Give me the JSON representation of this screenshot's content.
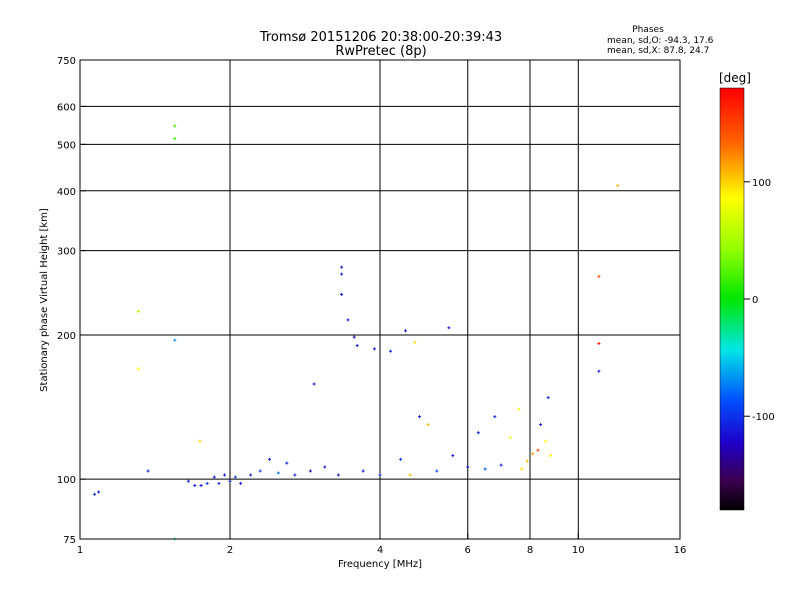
{
  "chart_data": {
    "type": "scatter",
    "title": "Tromsø 20151206 20:38:00-20:39:43",
    "subtitle": "RwPretec (8p)",
    "xlabel": "Frequency [MHz]",
    "ylabel": "Stationary phase Virtual Height [km]",
    "xscale": "log",
    "yscale": "log",
    "xlim": [
      1,
      16
    ],
    "ylim": [
      75,
      750
    ],
    "x_ticks": [
      1,
      2,
      4,
      6,
      8,
      10,
      16
    ],
    "x_tick_labels": [
      "1",
      "2",
      "4",
      "6",
      "8",
      "10",
      "16"
    ],
    "y_ticks": [
      75,
      100,
      200,
      300,
      400,
      500,
      600,
      750
    ],
    "y_tick_labels": [
      "75",
      "100",
      "200",
      "300",
      "400",
      "500",
      "600",
      "750"
    ],
    "x_gridlines": [
      2,
      4,
      6,
      8,
      10
    ],
    "y_gridlines": [
      100,
      200,
      300,
      400,
      500,
      600
    ],
    "grid": true,
    "colorbar": {
      "label": "[deg]",
      "range": [
        -180,
        180
      ],
      "ticks": [
        100,
        0,
        -100
      ],
      "tick_labels": [
        "100",
        "0",
        "-100"
      ]
    },
    "phases_info": {
      "heading": "Phases",
      "line1": "mean, sd,O: -94.3, 17.6",
      "line2": "mean, sd,X: 87.8, 24.7"
    },
    "points": [
      {
        "x": 1.07,
        "y": 93,
        "phase": -110
      },
      {
        "x": 1.09,
        "y": 94,
        "phase": -110
      },
      {
        "x": 1.31,
        "y": 224,
        "phase": 60
      },
      {
        "x": 1.31,
        "y": 170,
        "phase": 90
      },
      {
        "x": 1.37,
        "y": 104,
        "phase": -110
      },
      {
        "x": 1.55,
        "y": 546,
        "phase": 20
      },
      {
        "x": 1.55,
        "y": 514,
        "phase": 20
      },
      {
        "x": 1.55,
        "y": 195,
        "phase": -70
      },
      {
        "x": 1.55,
        "y": 75,
        "phase": -20
      },
      {
        "x": 1.65,
        "y": 99,
        "phase": -110
      },
      {
        "x": 1.7,
        "y": 97,
        "phase": -110
      },
      {
        "x": 1.74,
        "y": 120,
        "phase": 100
      },
      {
        "x": 1.75,
        "y": 97,
        "phase": -110
      },
      {
        "x": 1.8,
        "y": 98,
        "phase": -100
      },
      {
        "x": 1.86,
        "y": 101,
        "phase": -110
      },
      {
        "x": 1.9,
        "y": 98,
        "phase": -105
      },
      {
        "x": 1.95,
        "y": 102,
        "phase": -110
      },
      {
        "x": 2.0,
        "y": 99,
        "phase": -110
      },
      {
        "x": 2.05,
        "y": 101,
        "phase": -100
      },
      {
        "x": 2.1,
        "y": 98,
        "phase": -110
      },
      {
        "x": 2.2,
        "y": 102,
        "phase": -110
      },
      {
        "x": 2.3,
        "y": 104,
        "phase": -100
      },
      {
        "x": 2.4,
        "y": 110,
        "phase": -110
      },
      {
        "x": 2.5,
        "y": 103,
        "phase": -80
      },
      {
        "x": 2.6,
        "y": 108,
        "phase": -110
      },
      {
        "x": 2.7,
        "y": 102,
        "phase": -110
      },
      {
        "x": 2.9,
        "y": 104,
        "phase": -130
      },
      {
        "x": 2.95,
        "y": 158,
        "phase": -110
      },
      {
        "x": 3.1,
        "y": 106,
        "phase": -110
      },
      {
        "x": 3.3,
        "y": 102,
        "phase": -110
      },
      {
        "x": 3.35,
        "y": 277,
        "phase": -110
      },
      {
        "x": 3.35,
        "y": 268,
        "phase": -110
      },
      {
        "x": 3.35,
        "y": 243,
        "phase": -110
      },
      {
        "x": 3.45,
        "y": 215,
        "phase": -110
      },
      {
        "x": 3.55,
        "y": 198,
        "phase": -130
      },
      {
        "x": 3.6,
        "y": 190,
        "phase": -110
      },
      {
        "x": 3.7,
        "y": 104,
        "phase": -110
      },
      {
        "x": 3.9,
        "y": 187,
        "phase": -110
      },
      {
        "x": 4.0,
        "y": 102,
        "phase": -110
      },
      {
        "x": 4.2,
        "y": 185,
        "phase": -110
      },
      {
        "x": 4.4,
        "y": 110,
        "phase": -100
      },
      {
        "x": 4.5,
        "y": 204,
        "phase": -110
      },
      {
        "x": 4.6,
        "y": 102,
        "phase": 110
      },
      {
        "x": 4.7,
        "y": 193,
        "phase": 100
      },
      {
        "x": 4.8,
        "y": 135,
        "phase": -110
      },
      {
        "x": 5.0,
        "y": 130,
        "phase": 110
      },
      {
        "x": 5.2,
        "y": 104,
        "phase": -90
      },
      {
        "x": 5.5,
        "y": 207,
        "phase": -110
      },
      {
        "x": 5.6,
        "y": 112,
        "phase": -110
      },
      {
        "x": 6.0,
        "y": 106,
        "phase": -110
      },
      {
        "x": 6.3,
        "y": 125,
        "phase": -110
      },
      {
        "x": 6.5,
        "y": 105,
        "phase": -90
      },
      {
        "x": 6.8,
        "y": 135,
        "phase": -110
      },
      {
        "x": 7.0,
        "y": 107,
        "phase": -110
      },
      {
        "x": 7.3,
        "y": 122,
        "phase": 80
      },
      {
        "x": 7.6,
        "y": 140,
        "phase": 80
      },
      {
        "x": 7.7,
        "y": 105,
        "phase": 100
      },
      {
        "x": 7.9,
        "y": 109,
        "phase": 110
      },
      {
        "x": 8.1,
        "y": 113,
        "phase": 120
      },
      {
        "x": 8.3,
        "y": 115,
        "phase": 150
      },
      {
        "x": 8.4,
        "y": 130,
        "phase": -110
      },
      {
        "x": 8.6,
        "y": 120,
        "phase": 90
      },
      {
        "x": 8.7,
        "y": 148,
        "phase": -110
      },
      {
        "x": 8.8,
        "y": 112,
        "phase": 90
      },
      {
        "x": 11.0,
        "y": 265,
        "phase": 140
      },
      {
        "x": 11.0,
        "y": 192,
        "phase": 170
      },
      {
        "x": 11.0,
        "y": 168,
        "phase": -110
      },
      {
        "x": 12.0,
        "y": 410,
        "phase": 110
      }
    ]
  }
}
